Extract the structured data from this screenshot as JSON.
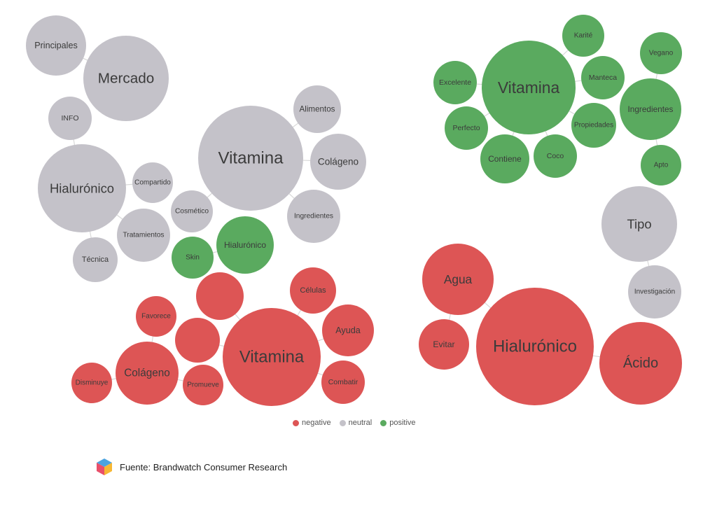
{
  "colors": {
    "negative": "#dd5555",
    "neutral": "#c4c2c9",
    "positive": "#5aaa5f",
    "link": "#d9d9d9"
  },
  "legend": [
    {
      "key": "negative",
      "label": "negative"
    },
    {
      "key": "neutral",
      "label": "neutral"
    },
    {
      "key": "positive",
      "label": "positive"
    }
  ],
  "source": {
    "text": "Fuente: Brandwatch Consumer Research",
    "icon": "brandwatch-logo-icon"
  },
  "clusters": [
    {
      "id": "neutral-vitamina",
      "words": [
        {
          "text": "Vitamina",
          "sentiment": "neutral"
        },
        {
          "text": "Alimentos",
          "sentiment": "neutral"
        },
        {
          "text": "Colágeno",
          "sentiment": "neutral"
        },
        {
          "text": "Ingredientes",
          "sentiment": "neutral"
        },
        {
          "text": "Cosmético",
          "sentiment": "neutral"
        },
        {
          "text": "Mercado",
          "sentiment": "neutral"
        },
        {
          "text": "Principales",
          "sentiment": "neutral"
        }
      ]
    },
    {
      "id": "neutral-hialuronico",
      "words": [
        {
          "text": "Hialurónico",
          "sentiment": "neutral"
        },
        {
          "text": "INFO",
          "sentiment": "neutral"
        },
        {
          "text": "Compartido",
          "sentiment": "neutral"
        },
        {
          "text": "Tratamientos",
          "sentiment": "neutral"
        },
        {
          "text": "Técnica",
          "sentiment": "neutral"
        },
        {
          "text": "Skin",
          "sentiment": "positive"
        },
        {
          "text": "Hialurónico",
          "sentiment": "positive"
        }
      ]
    },
    {
      "id": "positive-vitamina",
      "words": [
        {
          "text": "Vitamina",
          "sentiment": "positive"
        },
        {
          "text": "Karité",
          "sentiment": "positive"
        },
        {
          "text": "Manteca",
          "sentiment": "positive"
        },
        {
          "text": "Propiedades",
          "sentiment": "positive"
        },
        {
          "text": "Coco",
          "sentiment": "positive"
        },
        {
          "text": "Contiene",
          "sentiment": "positive"
        },
        {
          "text": "Perfecto",
          "sentiment": "positive"
        },
        {
          "text": "Excelente",
          "sentiment": "positive"
        },
        {
          "text": "Vegano",
          "sentiment": "positive"
        },
        {
          "text": "Ingredientes",
          "sentiment": "positive"
        },
        {
          "text": "Apto",
          "sentiment": "positive"
        }
      ]
    },
    {
      "id": "neutral-tipo",
      "words": [
        {
          "text": "Tipo",
          "sentiment": "neutral"
        },
        {
          "text": "Investigación",
          "sentiment": "neutral"
        }
      ]
    },
    {
      "id": "negative-vitamina",
      "words": [
        {
          "text": "Vitamina",
          "sentiment": "negative"
        },
        {
          "text": "Células",
          "sentiment": "negative"
        },
        {
          "text": "Ayuda",
          "sentiment": "negative"
        },
        {
          "text": "Combatir",
          "sentiment": "negative"
        },
        {
          "text": "",
          "sentiment": "negative"
        },
        {
          "text": "",
          "sentiment": "negative"
        },
        {
          "text": "Colágeno",
          "sentiment": "negative"
        },
        {
          "text": "Favorece",
          "sentiment": "negative"
        },
        {
          "text": "Promueve",
          "sentiment": "negative"
        },
        {
          "text": "Disminuye",
          "sentiment": "negative"
        }
      ]
    },
    {
      "id": "negative-hialuronico",
      "words": [
        {
          "text": "Hialurónico",
          "sentiment": "negative"
        },
        {
          "text": "Agua",
          "sentiment": "negative"
        },
        {
          "text": "Evitar",
          "sentiment": "negative"
        },
        {
          "text": "Ácido",
          "sentiment": "negative"
        }
      ]
    }
  ]
}
